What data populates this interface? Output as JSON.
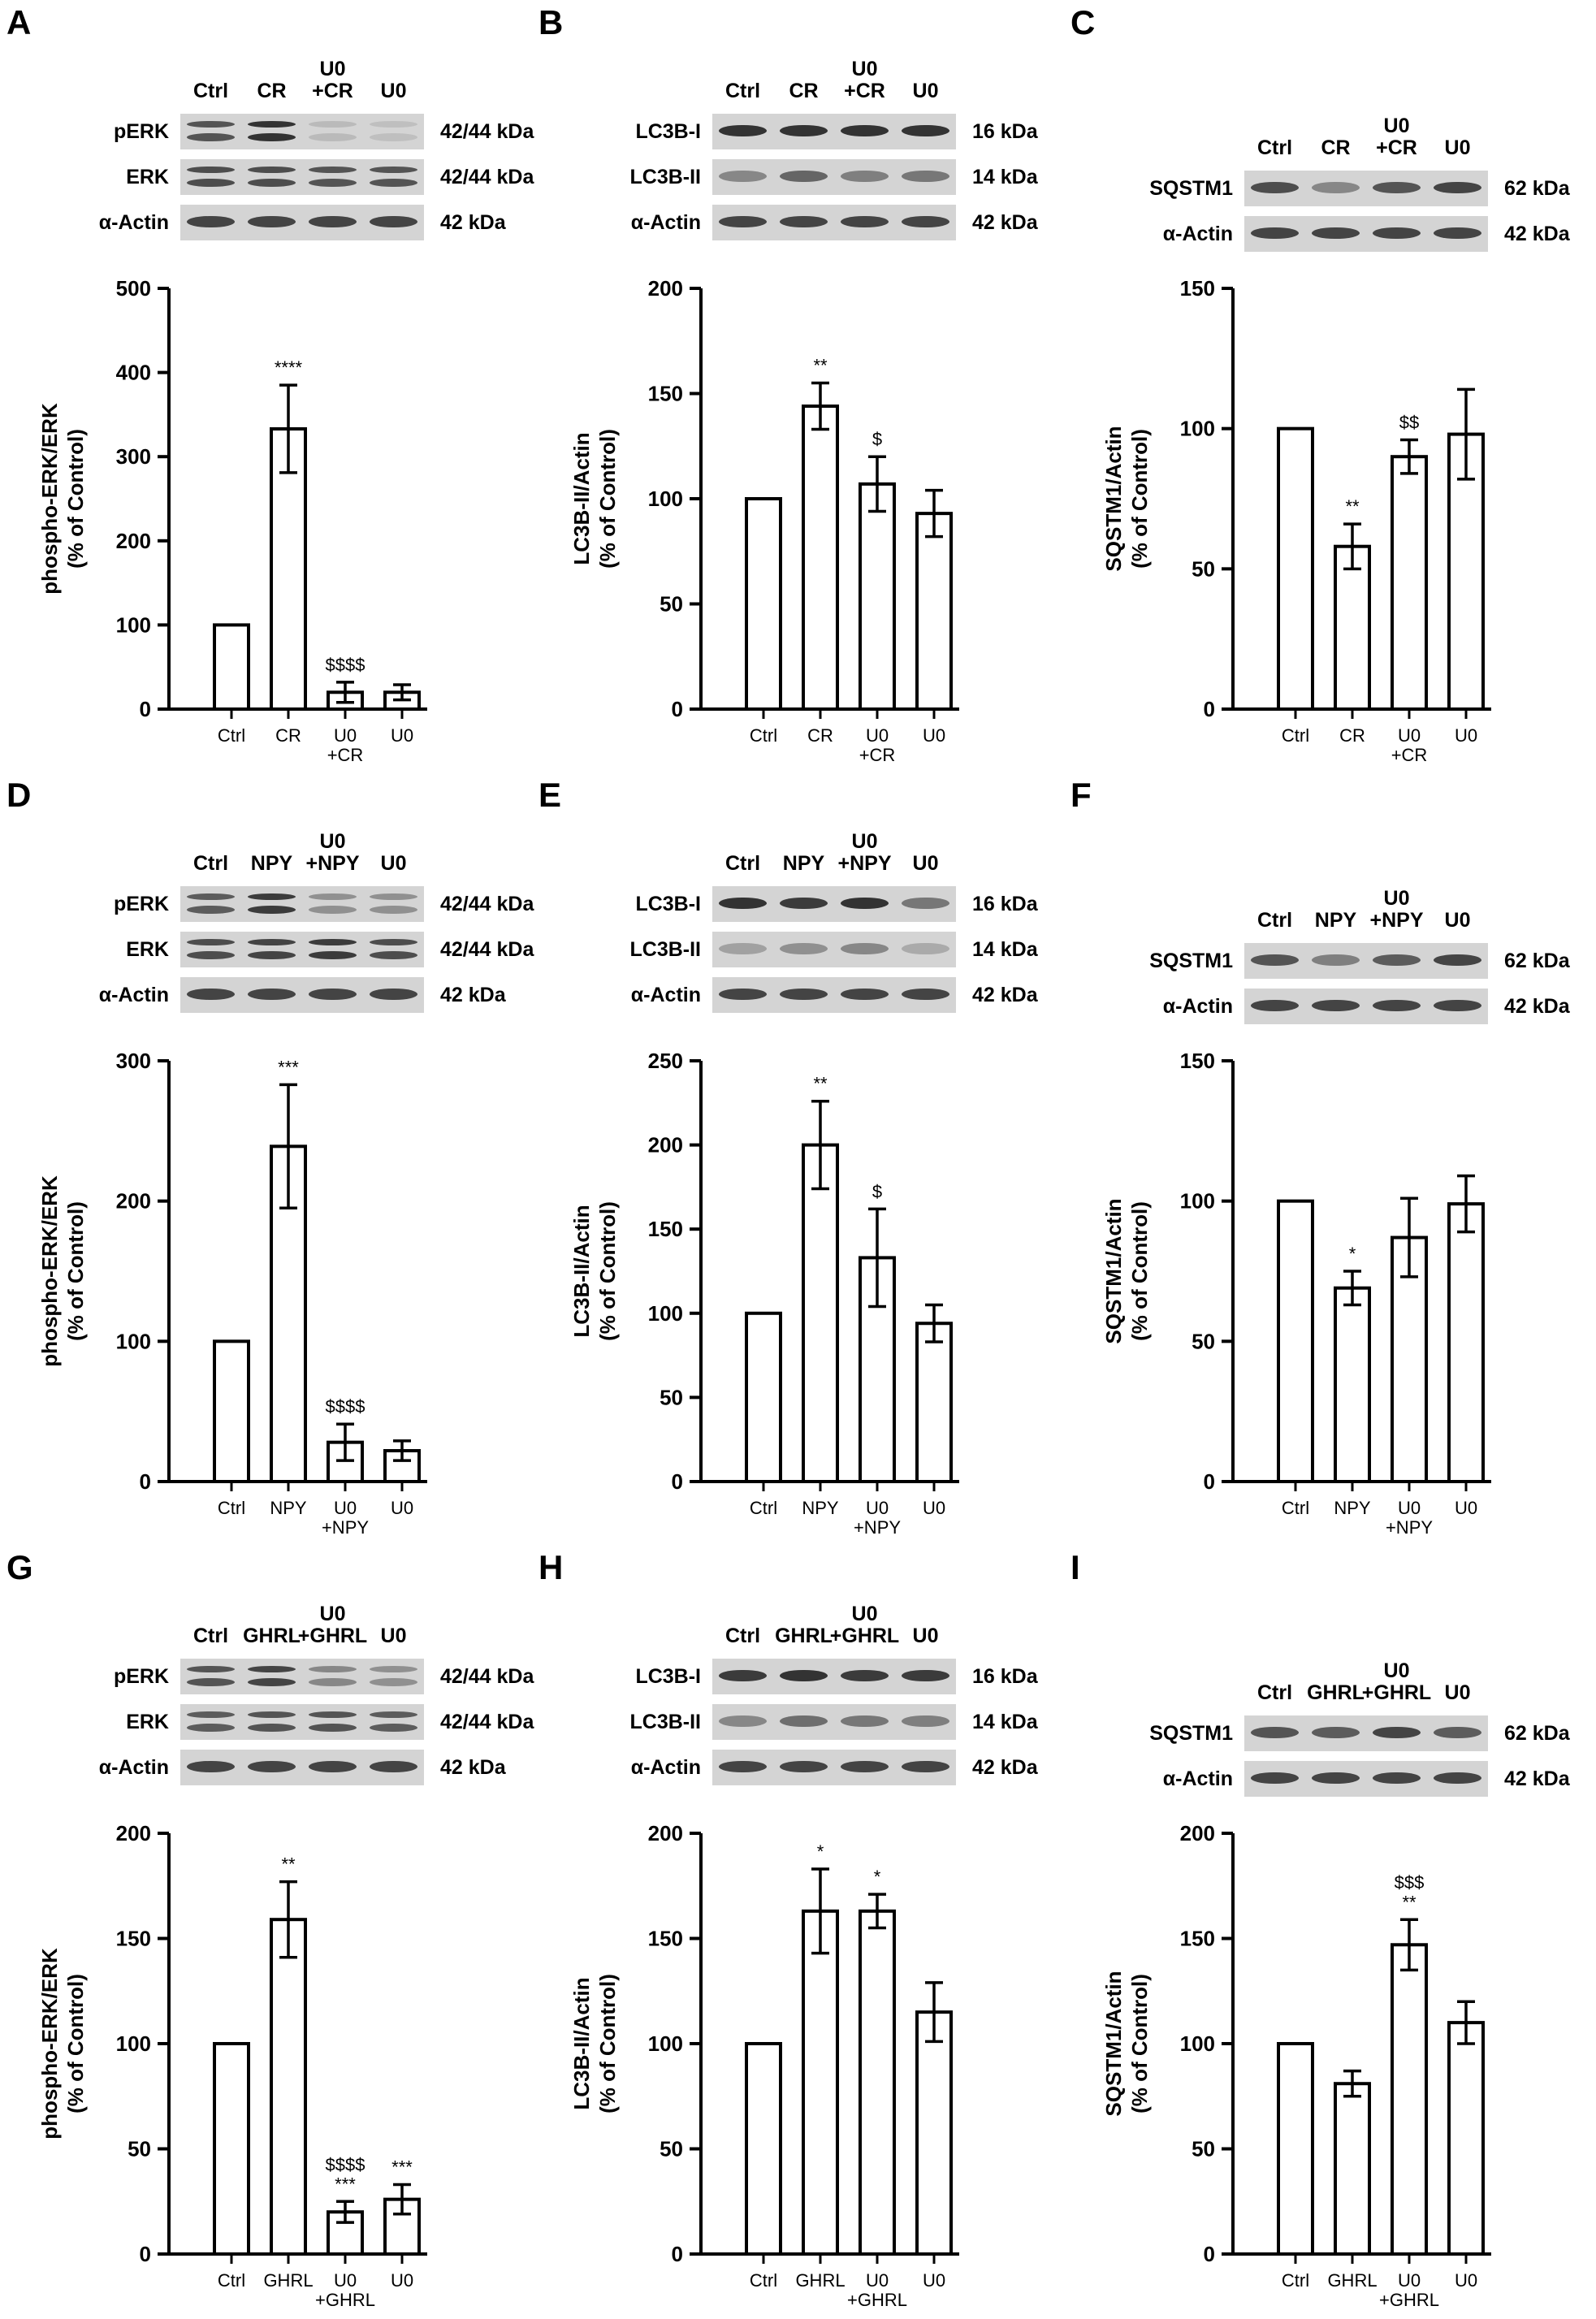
{
  "colors": {
    "bar_fill": "#ffffff",
    "bar_stroke": "#000000",
    "band": "#2a2a2a",
    "blot_bg": "#d4d4d4"
  },
  "panels": [
    {
      "letter": "A",
      "lanes": [
        "Ctrl",
        "CR",
        "U0\n+CR",
        "U0"
      ],
      "blot_rows": [
        {
          "label": "pERK",
          "kda": "42/44 kDa",
          "double": true,
          "intensity": [
            0.75,
            0.95,
            0.15,
            0.12
          ]
        },
        {
          "label": "ERK",
          "kda": "42/44 kDa",
          "double": true,
          "intensity": [
            0.8,
            0.8,
            0.75,
            0.75
          ]
        },
        {
          "label": "α-Actin",
          "kda": "42 kDa",
          "double": false,
          "intensity": [
            0.85,
            0.85,
            0.85,
            0.85
          ]
        }
      ],
      "chart_data": {
        "type": "bar",
        "categories": [
          "Ctrl",
          "CR",
          "U0\n+CR",
          "U0"
        ],
        "values": [
          100,
          333,
          20,
          20
        ],
        "errors": [
          0,
          52,
          12,
          9
        ],
        "annotations": [
          "",
          "****",
          "$$$$",
          ""
        ],
        "ylabel": [
          "phospho-ERK/ERK",
          "(% of Control)"
        ],
        "ylim": [
          0,
          500
        ],
        "yticks": [
          0,
          100,
          200,
          300,
          400,
          500
        ]
      }
    },
    {
      "letter": "B",
      "lanes": [
        "Ctrl",
        "CR",
        "U0\n+CR",
        "U0"
      ],
      "blot_rows": [
        {
          "label": "LC3B-I",
          "kda": "16 kDa",
          "double": false,
          "intensity": [
            0.95,
            0.95,
            0.95,
            0.95
          ]
        },
        {
          "label": "LC3B-II",
          "kda": "14 kDa",
          "double": false,
          "intensity": [
            0.45,
            0.65,
            0.5,
            0.55
          ]
        },
        {
          "label": "α-Actin",
          "kda": "42 kDa",
          "double": false,
          "intensity": [
            0.85,
            0.85,
            0.85,
            0.85
          ]
        }
      ],
      "chart_data": {
        "type": "bar",
        "categories": [
          "Ctrl",
          "CR",
          "U0\n+CR",
          "U0"
        ],
        "values": [
          100,
          144,
          107,
          93
        ],
        "errors": [
          0,
          11,
          13,
          11
        ],
        "annotations": [
          "",
          "**",
          "$",
          ""
        ],
        "ylabel": [
          "LC3B-II/Actin",
          "(% of Control)"
        ],
        "ylim": [
          0,
          200
        ],
        "yticks": [
          0,
          50,
          100,
          150,
          200
        ]
      }
    },
    {
      "letter": "C",
      "lanes": [
        "Ctrl",
        "CR",
        "U0\n+CR",
        "U0"
      ],
      "blot_rows": [
        {
          "label": "SQSTM1",
          "kda": "62 kDa",
          "double": false,
          "intensity": [
            0.8,
            0.45,
            0.75,
            0.85
          ]
        },
        {
          "label": "α-Actin",
          "kda": "42 kDa",
          "double": false,
          "intensity": [
            0.85,
            0.85,
            0.85,
            0.85
          ]
        }
      ],
      "chart_data": {
        "type": "bar",
        "categories": [
          "Ctrl",
          "CR",
          "U0\n+CR",
          "U0"
        ],
        "values": [
          100,
          58,
          90,
          98
        ],
        "errors": [
          0,
          8,
          6,
          16
        ],
        "annotations": [
          "",
          "**",
          "$$",
          ""
        ],
        "ylabel": [
          "SQSTM1/Actin",
          "(% of Control)"
        ],
        "ylim": [
          0,
          150
        ],
        "yticks": [
          0,
          50,
          100,
          150
        ]
      }
    },
    {
      "letter": "D",
      "lanes": [
        "Ctrl",
        "NPY",
        "U0\n+NPY",
        "U0"
      ],
      "blot_rows": [
        {
          "label": "pERK",
          "kda": "42/44 kDa",
          "double": true,
          "intensity": [
            0.7,
            0.9,
            0.4,
            0.4
          ]
        },
        {
          "label": "ERK",
          "kda": "42/44 kDa",
          "double": true,
          "intensity": [
            0.8,
            0.85,
            0.9,
            0.8
          ]
        },
        {
          "label": "α-Actin",
          "kda": "42 kDa",
          "double": false,
          "intensity": [
            0.85,
            0.85,
            0.85,
            0.85
          ]
        }
      ],
      "chart_data": {
        "type": "bar",
        "categories": [
          "Ctrl",
          "NPY",
          "U0\n+NPY",
          "U0"
        ],
        "values": [
          100,
          239,
          28,
          22
        ],
        "errors": [
          0,
          44,
          13,
          7
        ],
        "annotations": [
          "",
          "***",
          "$$$$",
          ""
        ],
        "ylabel": [
          "phospho-ERK/ERK",
          "(% of Control)"
        ],
        "ylim": [
          0,
          300
        ],
        "yticks": [
          0,
          100,
          200,
          300
        ]
      }
    },
    {
      "letter": "E",
      "lanes": [
        "Ctrl",
        "NPY",
        "U0\n+NPY",
        "U0"
      ],
      "blot_rows": [
        {
          "label": "LC3B-I",
          "kda": "16 kDa",
          "double": false,
          "intensity": [
            0.95,
            0.9,
            0.95,
            0.55
          ]
        },
        {
          "label": "LC3B-II",
          "kda": "14 kDa",
          "double": false,
          "intensity": [
            0.3,
            0.4,
            0.45,
            0.25
          ]
        },
        {
          "label": "α-Actin",
          "kda": "42 kDa",
          "double": false,
          "intensity": [
            0.85,
            0.85,
            0.85,
            0.85
          ]
        }
      ],
      "chart_data": {
        "type": "bar",
        "categories": [
          "Ctrl",
          "NPY",
          "U0\n+NPY",
          "U0"
        ],
        "values": [
          100,
          200,
          133,
          94
        ],
        "errors": [
          0,
          26,
          29,
          11
        ],
        "annotations": [
          "",
          "**",
          "$",
          ""
        ],
        "ylabel": [
          "LC3B-II/Actin",
          "(% of Control)"
        ],
        "ylim": [
          0,
          250
        ],
        "yticks": [
          0,
          50,
          100,
          150,
          200,
          250
        ]
      }
    },
    {
      "letter": "F",
      "lanes": [
        "Ctrl",
        "NPY",
        "U0\n+NPY",
        "U0"
      ],
      "blot_rows": [
        {
          "label": "SQSTM1",
          "kda": "62 kDa",
          "double": false,
          "intensity": [
            0.75,
            0.5,
            0.7,
            0.85
          ]
        },
        {
          "label": "α-Actin",
          "kda": "42 kDa",
          "double": false,
          "intensity": [
            0.85,
            0.85,
            0.85,
            0.85
          ]
        }
      ],
      "chart_data": {
        "type": "bar",
        "categories": [
          "Ctrl",
          "NPY",
          "U0\n+NPY",
          "U0"
        ],
        "values": [
          100,
          69,
          87,
          99
        ],
        "errors": [
          0,
          6,
          14,
          10
        ],
        "annotations": [
          "",
          "*",
          "",
          ""
        ],
        "ylabel": [
          "SQSTM1/Actin",
          "(% of Control)"
        ],
        "ylim": [
          0,
          150
        ],
        "yticks": [
          0,
          50,
          100,
          150
        ]
      }
    },
    {
      "letter": "G",
      "lanes": [
        "Ctrl",
        "GHRL",
        "U0\n+GHRL",
        "U0"
      ],
      "blot_rows": [
        {
          "label": "pERK",
          "kda": "42/44 kDa",
          "double": true,
          "intensity": [
            0.75,
            0.85,
            0.45,
            0.4
          ]
        },
        {
          "label": "ERK",
          "kda": "42/44 kDa",
          "double": true,
          "intensity": [
            0.7,
            0.75,
            0.75,
            0.7
          ]
        },
        {
          "label": "α-Actin",
          "kda": "42 kDa",
          "double": false,
          "intensity": [
            0.85,
            0.85,
            0.85,
            0.85
          ]
        }
      ],
      "chart_data": {
        "type": "bar",
        "categories": [
          "Ctrl",
          "GHRL",
          "U0\n+GHRL",
          "U0"
        ],
        "values": [
          100,
          159,
          20,
          26
        ],
        "errors": [
          0,
          18,
          5,
          7
        ],
        "annotations": [
          "",
          "**",
          "$$$$\n***",
          "***"
        ],
        "ylabel": [
          "phospho-ERK/ERK",
          "(% of Control)"
        ],
        "ylim": [
          0,
          200
        ],
        "yticks": [
          0,
          50,
          100,
          150,
          200
        ]
      }
    },
    {
      "letter": "H",
      "lanes": [
        "Ctrl",
        "GHRL",
        "U0\n+GHRL",
        "U0"
      ],
      "blot_rows": [
        {
          "label": "LC3B-I",
          "kda": "16 kDa",
          "double": false,
          "intensity": [
            0.9,
            0.95,
            0.9,
            0.9
          ]
        },
        {
          "label": "LC3B-II",
          "kda": "14 kDa",
          "double": false,
          "intensity": [
            0.45,
            0.6,
            0.55,
            0.5
          ]
        },
        {
          "label": "α-Actin",
          "kda": "42 kDa",
          "double": false,
          "intensity": [
            0.85,
            0.85,
            0.85,
            0.85
          ]
        }
      ],
      "chart_data": {
        "type": "bar",
        "categories": [
          "Ctrl",
          "GHRL",
          "U0\n+GHRL",
          "U0"
        ],
        "values": [
          100,
          163,
          163,
          115
        ],
        "errors": [
          0,
          20,
          8,
          14
        ],
        "annotations": [
          "",
          "*",
          "*",
          ""
        ],
        "ylabel": [
          "LC3B-II/Actin",
          "(% of Control)"
        ],
        "ylim": [
          0,
          200
        ],
        "yticks": [
          0,
          50,
          100,
          150,
          200
        ]
      }
    },
    {
      "letter": "I",
      "lanes": [
        "Ctrl",
        "GHRL",
        "U0\n+GHRL",
        "U0"
      ],
      "blot_rows": [
        {
          "label": "SQSTM1",
          "kda": "62 kDa",
          "double": false,
          "intensity": [
            0.75,
            0.7,
            0.85,
            0.7
          ]
        },
        {
          "label": "α-Actin",
          "kda": "42 kDa",
          "double": false,
          "intensity": [
            0.85,
            0.85,
            0.85,
            0.85
          ]
        }
      ],
      "chart_data": {
        "type": "bar",
        "categories": [
          "Ctrl",
          "GHRL",
          "U0\n+GHRL",
          "U0"
        ],
        "values": [
          100,
          81,
          147,
          110
        ],
        "errors": [
          0,
          6,
          12,
          10
        ],
        "annotations": [
          "",
          "",
          "$$$\n**",
          ""
        ],
        "ylabel": [
          "SQSTM1/Actin",
          "(% of Control)"
        ],
        "ylim": [
          0,
          200
        ],
        "yticks": [
          0,
          50,
          100,
          150,
          200
        ]
      }
    }
  ]
}
